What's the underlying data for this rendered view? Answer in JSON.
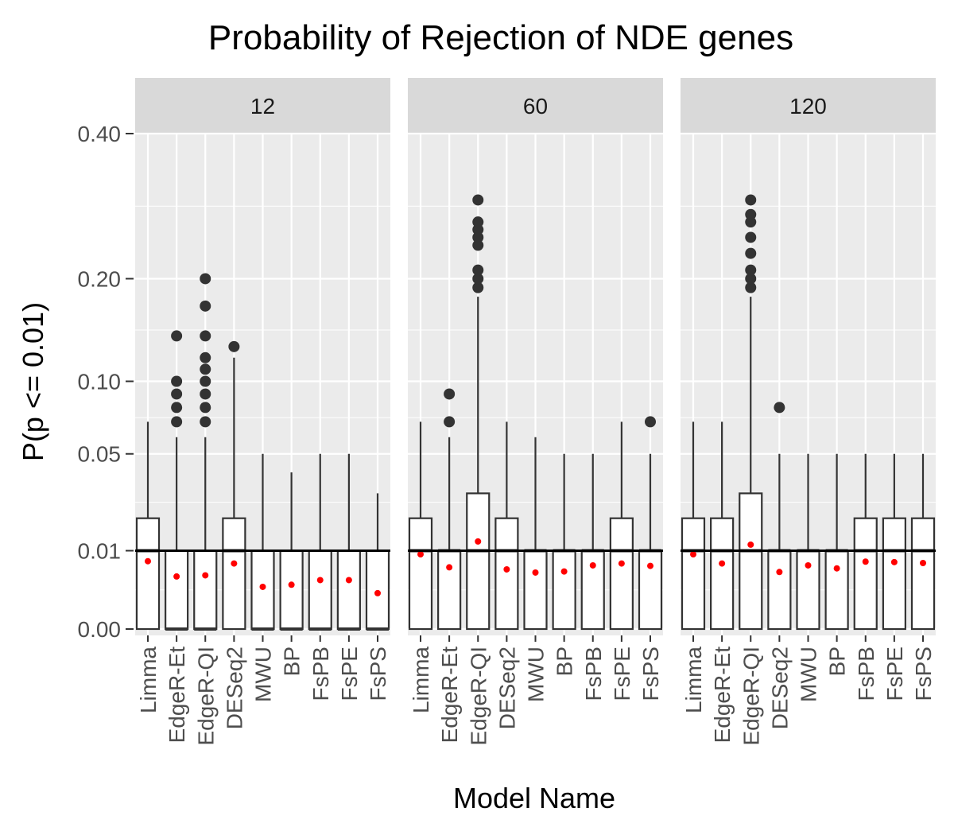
{
  "chart_data": {
    "type": "boxplot",
    "title": "Probability of Rejection of NDE genes",
    "xlabel": "Model Name",
    "ylabel": "P(p <= 0.01)",
    "y_scale": "sqrt",
    "ylim": [
      0,
      0.48
    ],
    "y_ticks": [
      0.0,
      0.01,
      0.05,
      0.1,
      0.2,
      0.4
    ],
    "y_tick_labels": [
      "0.00",
      "0.01",
      "0.05",
      "0.10",
      "0.20",
      "0.40"
    ],
    "reference_line": 0.01,
    "categories": [
      "Limma",
      "EdgeR-Et",
      "EdgeR-QI",
      "DESeq2",
      "MWU",
      "BP",
      "FsPB",
      "FsPE",
      "FsPS"
    ],
    "mean_marker_color": "#ff0000",
    "panel_background": "#ebebeb",
    "strip_background": "#d9d9d9",
    "facets": [
      {
        "label": "12",
        "boxes": [
          {
            "q1": 0,
            "median": 0.01,
            "q3": 0.02,
            "whisker_low": 0,
            "whisker_high": 0.07,
            "mean": 0.0075,
            "outliers": []
          },
          {
            "q1": 0,
            "median": 0,
            "q3": 0.01,
            "whisker_low": 0,
            "whisker_high": 0.06,
            "mean": 0.0045,
            "outliers": [
              0.07,
              0.08,
              0.09,
              0.1,
              0.14
            ]
          },
          {
            "q1": 0,
            "median": 0,
            "q3": 0.01,
            "whisker_low": 0,
            "whisker_high": 0.06,
            "mean": 0.0047,
            "outliers": [
              0.07,
              0.08,
              0.09,
              0.1,
              0.11,
              0.12,
              0.14,
              0.17,
              0.2
            ]
          },
          {
            "q1": 0,
            "median": 0.01,
            "q3": 0.02,
            "whisker_low": 0,
            "whisker_high": 0.12,
            "mean": 0.007,
            "outliers": [
              0.13
            ]
          },
          {
            "q1": 0,
            "median": 0,
            "q3": 0.01,
            "whisker_low": 0,
            "whisker_high": 0.05,
            "mean": 0.0029,
            "outliers": []
          },
          {
            "q1": 0,
            "median": 0,
            "q3": 0.01,
            "whisker_low": 0,
            "whisker_high": 0.04,
            "mean": 0.0032,
            "outliers": []
          },
          {
            "q1": 0,
            "median": 0,
            "q3": 0.01,
            "whisker_low": 0,
            "whisker_high": 0.05,
            "mean": 0.0039,
            "outliers": []
          },
          {
            "q1": 0,
            "median": 0,
            "q3": 0.01,
            "whisker_low": 0,
            "whisker_high": 0.05,
            "mean": 0.0039,
            "outliers": []
          },
          {
            "q1": 0,
            "median": 0,
            "q3": 0.01,
            "whisker_low": 0,
            "whisker_high": 0.03,
            "mean": 0.0021,
            "outliers": []
          }
        ]
      },
      {
        "label": "60",
        "boxes": [
          {
            "q1": 0,
            "median": 0.01,
            "q3": 0.02,
            "whisker_low": 0,
            "whisker_high": 0.07,
            "mean": 0.0091,
            "outliers": []
          },
          {
            "q1": 0,
            "median": 0.01,
            "q3": 0.01,
            "whisker_low": 0,
            "whisker_high": 0.06,
            "mean": 0.0062,
            "outliers": [
              0.07,
              0.09
            ]
          },
          {
            "q1": 0,
            "median": 0.01,
            "q3": 0.03,
            "whisker_low": 0,
            "whisker_high": 0.18,
            "mean": 0.0125,
            "outliers": [
              0.19,
              0.2,
              0.21,
              0.24,
              0.25,
              0.26,
              0.27,
              0.3
            ]
          },
          {
            "q1": 0,
            "median": 0.01,
            "q3": 0.02,
            "whisker_low": 0,
            "whisker_high": 0.07,
            "mean": 0.0058,
            "outliers": []
          },
          {
            "q1": 0,
            "median": 0.01,
            "q3": 0.01,
            "whisker_low": 0,
            "whisker_high": 0.06,
            "mean": 0.0052,
            "outliers": []
          },
          {
            "q1": 0,
            "median": 0.01,
            "q3": 0.01,
            "whisker_low": 0,
            "whisker_high": 0.05,
            "mean": 0.0054,
            "outliers": []
          },
          {
            "q1": 0,
            "median": 0.01,
            "q3": 0.01,
            "whisker_low": 0,
            "whisker_high": 0.05,
            "mean": 0.0066,
            "outliers": []
          },
          {
            "q1": 0,
            "median": 0.01,
            "q3": 0.02,
            "whisker_low": 0,
            "whisker_high": 0.07,
            "mean": 0.007,
            "outliers": []
          },
          {
            "q1": 0,
            "median": 0.01,
            "q3": 0.01,
            "whisker_low": 0,
            "whisker_high": 0.05,
            "mean": 0.0065,
            "outliers": [
              0.07
            ]
          }
        ]
      },
      {
        "label": "120",
        "boxes": [
          {
            "q1": 0,
            "median": 0.01,
            "q3": 0.02,
            "whisker_low": 0,
            "whisker_high": 0.07,
            "mean": 0.0091,
            "outliers": []
          },
          {
            "q1": 0,
            "median": 0.01,
            "q3": 0.02,
            "whisker_low": 0,
            "whisker_high": 0.07,
            "mean": 0.007,
            "outliers": []
          },
          {
            "q1": 0,
            "median": 0.01,
            "q3": 0.03,
            "whisker_low": 0,
            "whisker_high": 0.18,
            "mean": 0.0116,
            "outliers": [
              0.19,
              0.2,
              0.21,
              0.23,
              0.25,
              0.27,
              0.28,
              0.3
            ]
          },
          {
            "q1": 0,
            "median": 0.01,
            "q3": 0.01,
            "whisker_low": 0,
            "whisker_high": 0.05,
            "mean": 0.0053,
            "outliers": [
              0.08
            ]
          },
          {
            "q1": 0,
            "median": 0.01,
            "q3": 0.01,
            "whisker_low": 0,
            "whisker_high": 0.05,
            "mean": 0.0066,
            "outliers": []
          },
          {
            "q1": 0,
            "median": 0.01,
            "q3": 0.01,
            "whisker_low": 0,
            "whisker_high": 0.05,
            "mean": 0.006,
            "outliers": []
          },
          {
            "q1": 0,
            "median": 0.01,
            "q3": 0.02,
            "whisker_low": 0,
            "whisker_high": 0.05,
            "mean": 0.0074,
            "outliers": []
          },
          {
            "q1": 0,
            "median": 0.01,
            "q3": 0.02,
            "whisker_low": 0,
            "whisker_high": 0.05,
            "mean": 0.0073,
            "outliers": []
          },
          {
            "q1": 0,
            "median": 0.01,
            "q3": 0.02,
            "whisker_low": 0,
            "whisker_high": 0.05,
            "mean": 0.0071,
            "outliers": []
          }
        ]
      }
    ]
  }
}
